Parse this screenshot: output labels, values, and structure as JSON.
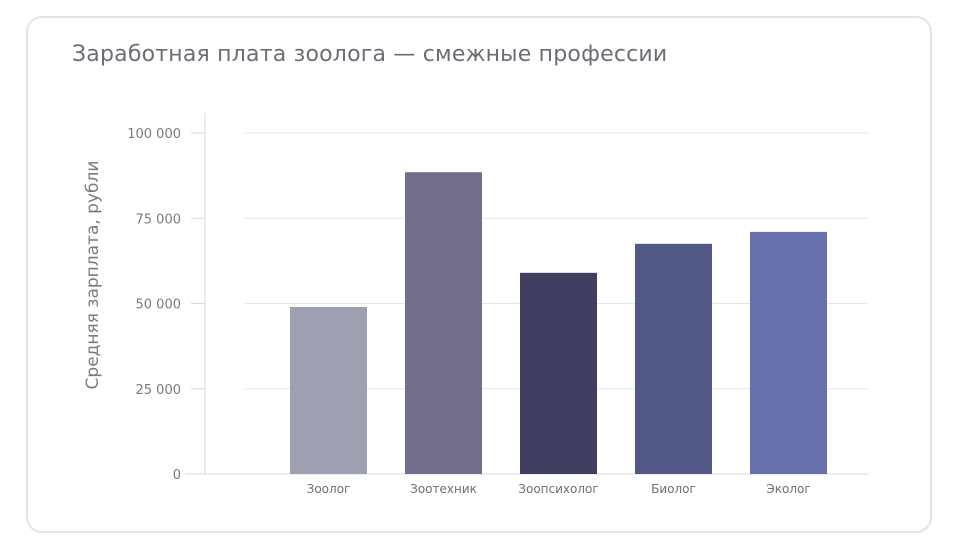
{
  "chart_data": {
    "type": "bar",
    "title": "Заработная плата зоолога — смежные профессии",
    "xlabel": "",
    "ylabel": "Средняя зарплата, рубли",
    "categories": [
      "Зоолог",
      "Зоотехник",
      "Зоопсихолог",
      "Биолог",
      "Эколог"
    ],
    "values": [
      49000,
      88500,
      59000,
      67500,
      71000
    ],
    "colors": [
      "#9e9fb1",
      "#726e8b",
      "#403f61",
      "#525986",
      "#6770aa"
    ],
    "ylim": [
      0,
      100000
    ],
    "yticks": [
      0,
      25000,
      50000,
      75000,
      100000
    ],
    "ytick_labels": [
      "0",
      "25 000",
      "50 000",
      "75 000",
      "100 000"
    ],
    "grid": true,
    "legend": "none"
  }
}
